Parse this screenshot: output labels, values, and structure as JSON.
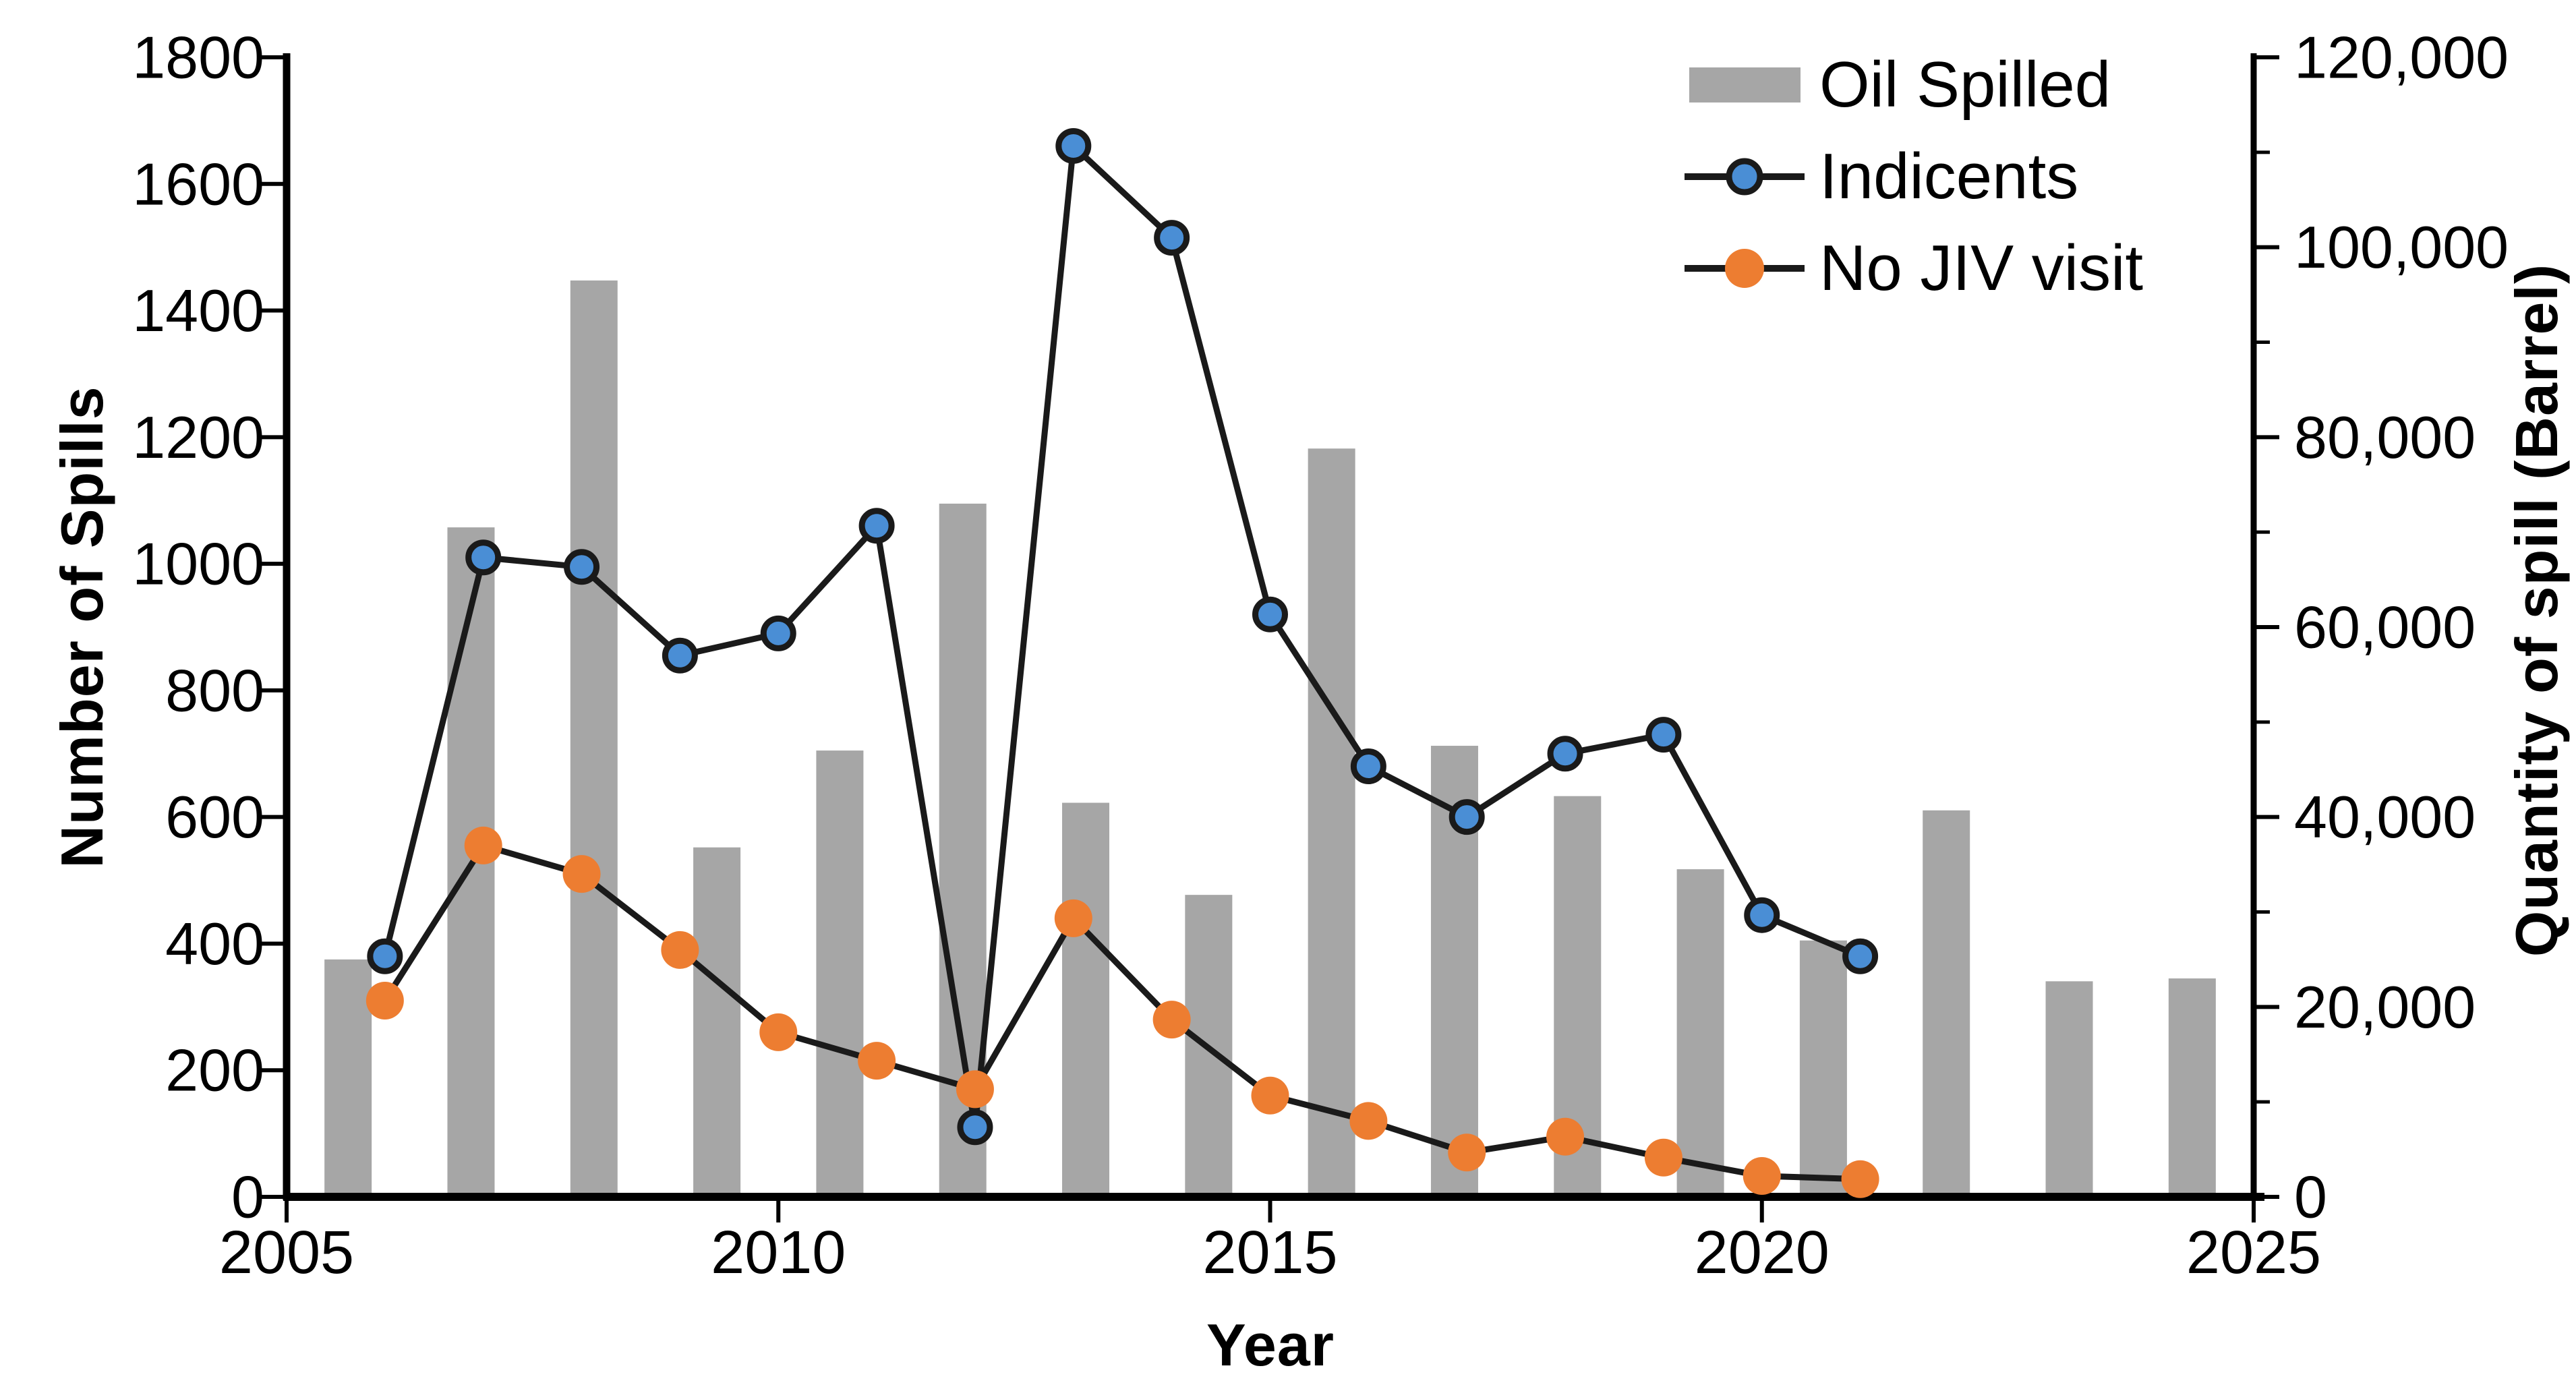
{
  "chart_data": {
    "type": "combo-bar-line",
    "title": "",
    "x_axis": {
      "label": "Year",
      "min": 2005,
      "max": 2025,
      "tick_values": [
        2005,
        2010,
        2015,
        2020,
        2025
      ],
      "tick_labels": [
        "2005",
        "2010",
        "2015",
        "2020",
        "2025"
      ]
    },
    "y_left": {
      "label": "Number of Spills",
      "min": 0,
      "max": 1800,
      "tick_values": [
        0,
        200,
        400,
        600,
        800,
        1000,
        1200,
        1400,
        1600,
        1800
      ],
      "tick_labels": [
        "0",
        "200",
        "400",
        "600",
        "800",
        "1000",
        "1200",
        "1400",
        "1600",
        "1800"
      ]
    },
    "y_right": {
      "label": "Quantity of spill (Barrel)",
      "min": 0,
      "max": 120000,
      "major_tick_values": [
        0,
        20000,
        40000,
        60000,
        80000,
        100000,
        120000
      ],
      "major_tick_labels": [
        "0",
        "20,000",
        "40,000",
        "60,000",
        "80,000",
        "100,000",
        "120,000"
      ],
      "minor_tick_values": [
        10000,
        30000,
        50000,
        70000,
        90000,
        110000
      ]
    },
    "years": [
      2006,
      2007,
      2008,
      2009,
      2010,
      2011,
      2012,
      2013,
      2014,
      2015,
      2016,
      2017,
      2018,
      2019,
      2020,
      2021
    ],
    "series": [
      {
        "name": "Oil Spilled",
        "type": "bar",
        "axis": "right",
        "color": "#A6A6A6",
        "values": [
          25000,
          70500,
          96500,
          36800,
          47000,
          73000,
          41500,
          31800,
          78800,
          47500,
          42200,
          34500,
          27000,
          40700,
          22700,
          23000
        ]
      },
      {
        "name": "Indicents",
        "type": "line",
        "axis": "left",
        "line_color": "#1A1A1A",
        "marker_color": "#4A8ED5",
        "marker_outline": "#1A1A1A",
        "values": [
          380,
          1010,
          995,
          855,
          890,
          1060,
          110,
          1660,
          1515,
          920,
          680,
          600,
          700,
          730,
          445,
          380
        ]
      },
      {
        "name": "No JIV visit",
        "type": "line",
        "axis": "left",
        "line_color": "#1A1A1A",
        "marker_color": "#ED7D31",
        "marker_outline": "none",
        "values": [
          310,
          555,
          510,
          390,
          260,
          215,
          170,
          440,
          280,
          160,
          120,
          70,
          95,
          62,
          33,
          28
        ]
      }
    ],
    "layout_notes": {
      "grid": "none",
      "legend_position": "top-right-inside",
      "bar_slots": "16 equal category slots across plot width; bars sit right of the corresponding year tick positions",
      "axis_color": "#000000"
    }
  },
  "legend": {
    "items": [
      {
        "label": "Oil Spilled"
      },
      {
        "label": "Indicents"
      },
      {
        "label": "No JIV visit"
      }
    ]
  }
}
